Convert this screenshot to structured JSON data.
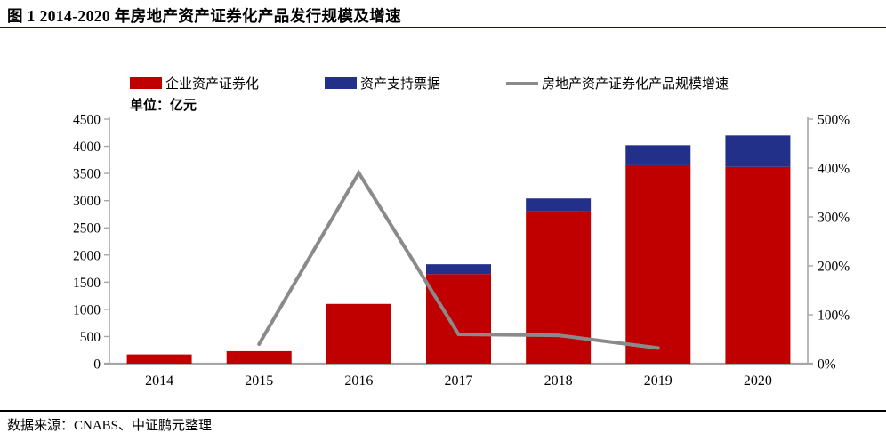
{
  "page": {
    "title": "图 1 2014-2020 年房地产资产证券化产品发行规模及增速"
  },
  "unit_label": "单位：亿元",
  "legend": {
    "items": [
      {
        "label": "企业资产证券化",
        "swatch": "bar"
      },
      {
        "label": "资产支持票据",
        "swatch": "bar"
      },
      {
        "label": "房地产资产证券化产品规模增速",
        "swatch": "line"
      }
    ]
  },
  "footer": {
    "source": "数据来源：CNABS、中证鹏元整理"
  },
  "colors": {
    "bar_red": "#C00000",
    "bar_blue": "#22308A",
    "line_gray": "#8A8A8A",
    "axis_gray": "#A6A6A6",
    "title_rule": "#15154A",
    "footer_rule": "#000000"
  },
  "chart_data": {
    "type": "bar",
    "subtype": "stacked-bar-with-line",
    "title": "图 1 2014-2020 年房地产资产证券化产品发行规模及增速",
    "unit": "亿元",
    "legend_position": "top",
    "grid": false,
    "categories": [
      "2014",
      "2015",
      "2016",
      "2017",
      "2018",
      "2019",
      "2020"
    ],
    "series": [
      {
        "name": "企业资产证券化",
        "type": "bar",
        "stack": true,
        "axis": "left",
        "color": "#C00000",
        "values": [
          170,
          230,
          1100,
          1650,
          2800,
          3650,
          3620
        ]
      },
      {
        "name": "资产支持票据",
        "type": "bar",
        "stack": true,
        "axis": "left",
        "color": "#22308A",
        "values": [
          0,
          0,
          0,
          180,
          240,
          370,
          580
        ]
      },
      {
        "name": "房地产资产证券化产品规模增速",
        "type": "line",
        "axis": "right",
        "color": "#8A8A8A",
        "unit": "%",
        "values": [
          null,
          40,
          390,
          60,
          58,
          32,
          null
        ]
      }
    ],
    "left_axis": {
      "min": 0,
      "max": 4500,
      "step": 500,
      "tick_labels": [
        "0",
        "500",
        "1000",
        "1500",
        "2000",
        "2500",
        "3000",
        "3500",
        "4000",
        "4500"
      ]
    },
    "right_axis": {
      "min": 0,
      "max": 500,
      "step": 100,
      "tick_labels": [
        "0%",
        "100%",
        "200%",
        "300%",
        "400%",
        "500%"
      ]
    }
  }
}
